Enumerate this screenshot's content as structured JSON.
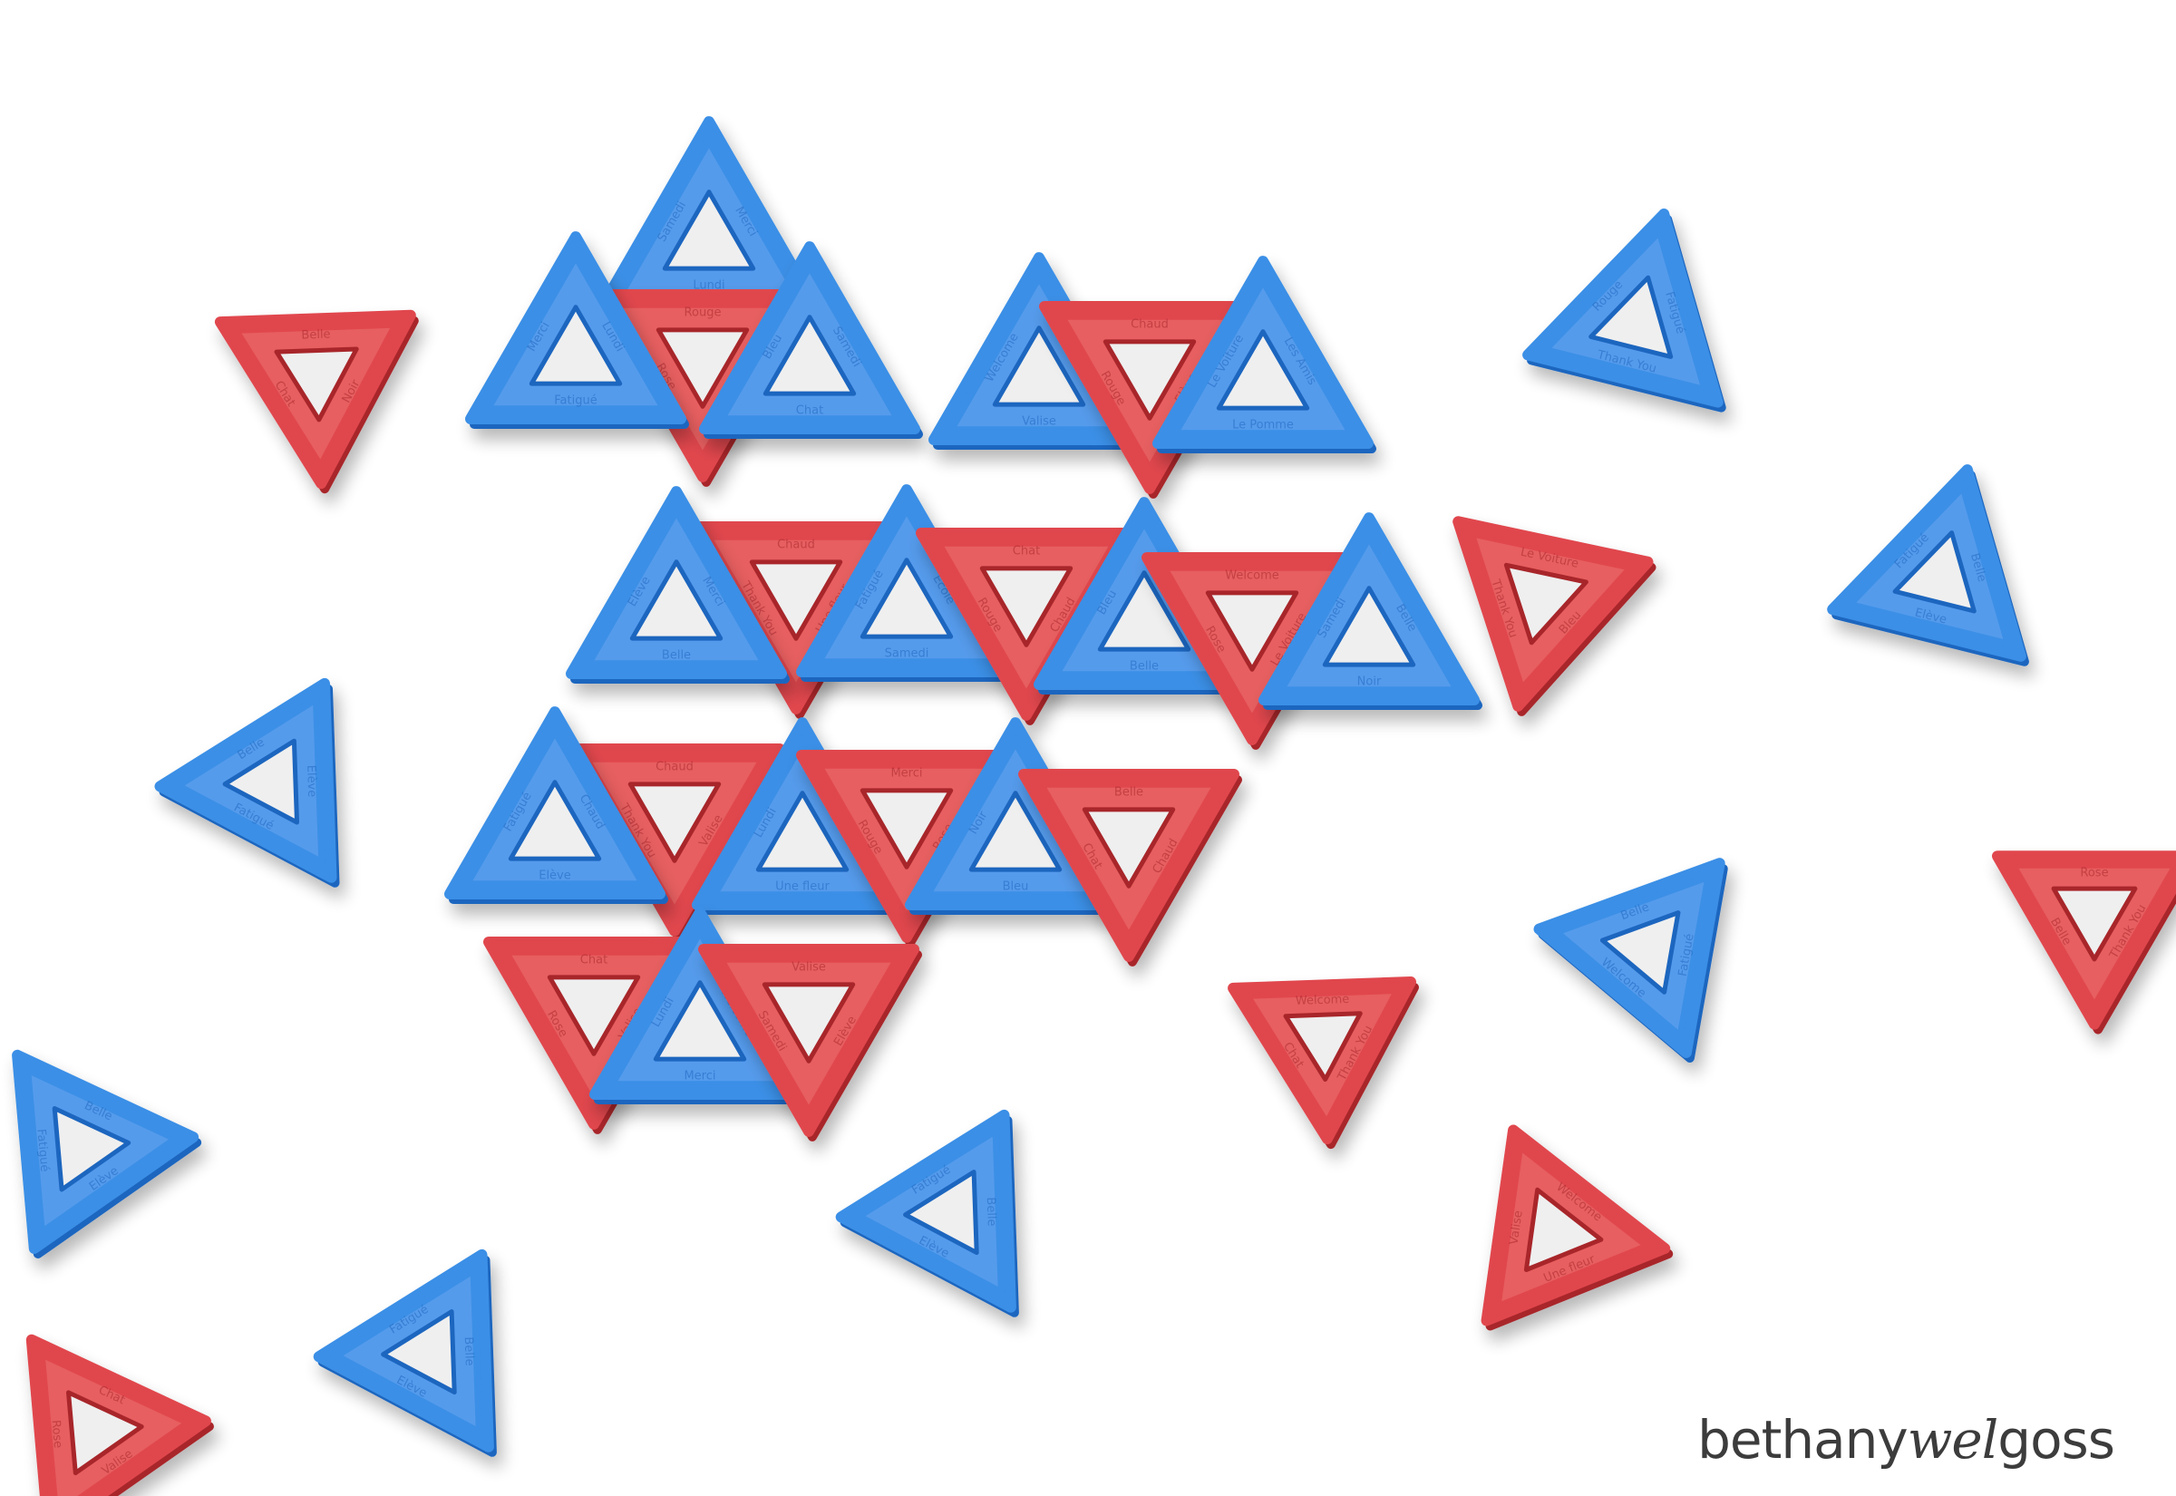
{
  "image": {
    "description_colors": {
      "background": "#ffffff",
      "blue_tile": "#3b8fe6",
      "blue_tile_dark": "#1f66bf",
      "red_tile": "#e0474d",
      "red_tile_dark": "#a8262b"
    }
  },
  "brand": {
    "part1": "bethany",
    "part2": "wel",
    "part3": "goss"
  },
  "tile_words": {
    "w1": "Merci",
    "w2": "Lundi",
    "w3": "Samedi",
    "w4": "Chaud",
    "w5": "Elève",
    "w6": "Fatigué",
    "w7": "Belle",
    "w8": "Le Voiture",
    "w9": "Une fleur",
    "w10": "Bleu",
    "w11": "Noir",
    "w12": "Rouge",
    "w13": "Thank You",
    "w14": "Rose",
    "w15": "Chat",
    "w16": "Valise",
    "w17": "Welcome",
    "w18": "Les Amis",
    "w19": "Le Pomme",
    "w20": "Ecole"
  },
  "tiles": [
    {
      "color": "blue",
      "dir": "up"
    },
    {
      "color": "red",
      "dir": "down"
    }
  ]
}
